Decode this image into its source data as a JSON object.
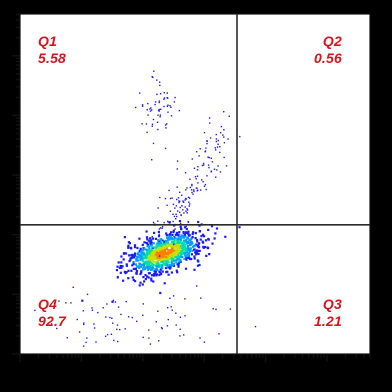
{
  "chart_data": {
    "type": "scatter",
    "title": "",
    "xlabel": "",
    "ylabel": "",
    "x_scale": "log",
    "y_scale": "log",
    "gates": {
      "x": 0.62,
      "y": 0.38
    },
    "quadrants": [
      {
        "name": "Q1",
        "value": "5.58",
        "position": "top-left"
      },
      {
        "name": "Q2",
        "value": "0.56",
        "position": "top-right"
      },
      {
        "name": "Q3",
        "value": "1.21",
        "position": "bottom-right"
      },
      {
        "name": "Q4",
        "value": "92.7",
        "position": "bottom-left"
      }
    ],
    "populations": [
      {
        "name": "main",
        "center": [
          0.41,
          0.3
        ],
        "spread": [
          0.055,
          0.028
        ],
        "count": 900
      },
      {
        "name": "diagonal-tail",
        "center": [
          0.47,
          0.52
        ],
        "spread": [
          0.06,
          0.09
        ],
        "count": 160
      },
      {
        "name": "upper-cluster",
        "center": [
          0.39,
          0.72
        ],
        "spread": [
          0.025,
          0.05
        ],
        "count": 60
      },
      {
        "name": "low-scatter",
        "center": [
          0.32,
          0.1
        ],
        "spread": [
          0.12,
          0.06
        ],
        "count": 90
      }
    ],
    "grid": false,
    "colors": {
      "background": "#000000",
      "plot_bg": "#ffffff",
      "gate_lines": "#2b2b2b",
      "quadrant_text": "#d8141c",
      "density": [
        "#1a1aff",
        "#00a0ff",
        "#00e0a0",
        "#c8e000",
        "#ff8000"
      ]
    }
  }
}
